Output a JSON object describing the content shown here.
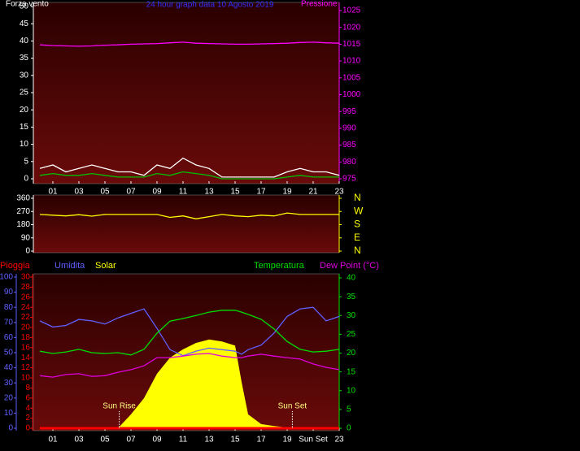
{
  "chart_data": [
    {
      "type": "line",
      "title": "24 hour graph data  10 Agosto 2019",
      "title_color": "#3030ff",
      "ylabel": "Forza vento",
      "y2label": "Pressione",
      "x": [
        0,
        1,
        2,
        3,
        4,
        5,
        6,
        7,
        8,
        9,
        10,
        11,
        12,
        13,
        14,
        15,
        16,
        17,
        18,
        19,
        20,
        21,
        22,
        23
      ],
      "xlim": [
        -0.5,
        23
      ],
      "xticks": [
        {
          "value": 1,
          "label": "01"
        },
        {
          "value": 3,
          "label": "03"
        },
        {
          "value": 5,
          "label": "05"
        },
        {
          "value": 7,
          "label": "07"
        },
        {
          "value": 9,
          "label": "09"
        },
        11,
        13,
        15,
        17,
        19,
        21,
        23
      ],
      "ylim": [
        0,
        50
      ],
      "yticks": [
        0,
        5,
        10,
        15,
        20,
        25,
        30,
        35,
        40,
        45,
        50
      ],
      "y_color": "#ffffff",
      "y2lim": [
        975,
        1025
      ],
      "y2ticks": [
        975,
        980,
        985,
        990,
        995,
        1000,
        1005,
        1010,
        1015,
        1020,
        1025
      ],
      "y2_color": "#ff00ff",
      "series": [
        {
          "color": "#ffffff",
          "values": [
            3,
            4,
            2,
            3,
            4,
            3,
            2,
            2,
            1,
            4,
            3,
            6,
            4,
            3,
            0.5,
            0.5,
            0.5,
            0.5,
            0.5,
            2,
            3,
            2,
            2,
            1
          ]
        },
        {
          "color": "#00c000",
          "values": [
            1,
            1.5,
            1,
            1,
            1.5,
            1,
            0.5,
            0.5,
            0.5,
            1.5,
            1,
            2,
            1.5,
            1,
            0,
            0,
            0,
            0,
            0,
            0.5,
            1,
            0.5,
            0.5,
            0.5
          ]
        },
        {
          "color": "#ff00ff",
          "axis": "y2",
          "values": [
            1014.8,
            1014.6,
            1014.5,
            1014.4,
            1014.5,
            1014.7,
            1014.8,
            1015,
            1015.1,
            1015.2,
            1015.4,
            1015.6,
            1015.3,
            1015.2,
            1015.1,
            1015,
            1015,
            1015.1,
            1015.2,
            1015.3,
            1015.5,
            1015.6,
            1015.4,
            1015.3
          ]
        }
      ]
    },
    {
      "type": "line",
      "x": [
        0,
        1,
        2,
        3,
        4,
        5,
        6,
        7,
        8,
        9,
        10,
        11,
        12,
        13,
        14,
        15,
        16,
        17,
        18,
        19,
        20,
        21,
        22,
        23
      ],
      "xlim": [
        -0.5,
        23
      ],
      "ylim": [
        0,
        360
      ],
      "yticks": [
        0,
        90,
        180,
        270,
        360
      ],
      "y_color": "#ffffff",
      "y2lim": [
        0,
        360
      ],
      "y2ticks": [
        {
          "value": 360,
          "label": "N"
        },
        {
          "value": 270,
          "label": "W"
        },
        {
          "value": 180,
          "label": "S"
        },
        {
          "value": 90,
          "label": "E"
        },
        {
          "value": 0,
          "label": "N"
        }
      ],
      "y2_color": "#ffff00",
      "series": [
        {
          "color": "#ffff00",
          "values": [
            250,
            245,
            240,
            248,
            238,
            250,
            250,
            250,
            250,
            250,
            230,
            240,
            220,
            235,
            250,
            240,
            235,
            245,
            240,
            260,
            250,
            250,
            250,
            250
          ]
        }
      ]
    },
    {
      "type": "line",
      "x": [
        0,
        1,
        2,
        3,
        4,
        5,
        6,
        7,
        8,
        9,
        10,
        11,
        12,
        13,
        14,
        15,
        15.5,
        16,
        17,
        18,
        19,
        20,
        21,
        22,
        23
      ],
      "xlim": [
        -0.5,
        23
      ],
      "xticks": [
        {
          "value": 1,
          "label": "01"
        },
        {
          "value": 3,
          "label": "03"
        },
        {
          "value": 5,
          "label": "05"
        },
        {
          "value": 7,
          "label": "07"
        },
        {
          "value": 9,
          "label": "09"
        },
        11,
        13,
        15,
        17,
        19,
        {
          "value": 21,
          "label": "Sun Set"
        },
        23
      ],
      "ylim": [
        0,
        100
      ],
      "yticks": [
        0,
        10,
        20,
        30,
        40,
        50,
        60,
        70,
        80,
        90,
        100
      ],
      "y_color": "#6060ff",
      "y3lim": [
        0,
        30
      ],
      "y3ticks": [
        0,
        2,
        4,
        6,
        8,
        10,
        12,
        14,
        16,
        18,
        20,
        22,
        24,
        26,
        28,
        30
      ],
      "y3_color": "#ff0000",
      "y2lim": [
        0,
        40
      ],
      "y2ticks": [
        0,
        5,
        10,
        15,
        20,
        25,
        30,
        35,
        40
      ],
      "y2_color": "#00e000",
      "series": [
        {
          "name": "Pioggia",
          "color": "#ff0000",
          "axis": "y3",
          "values": [
            0,
            0,
            0,
            0,
            0,
            0,
            0,
            0,
            0,
            0,
            0,
            0,
            0,
            0,
            0,
            0,
            0,
            0,
            0,
            0,
            0,
            0,
            0,
            0,
            0
          ]
        },
        {
          "name": "Umidita",
          "color": "#6060ff",
          "values": [
            71,
            67,
            68,
            72,
            71,
            69,
            73,
            76,
            79,
            66,
            52,
            48,
            51,
            53,
            52,
            51,
            49,
            52,
            55,
            63,
            74,
            79,
            80,
            71,
            74
          ]
        },
        {
          "name": "Solar",
          "color": "#ffff00",
          "axis": "y2",
          "kind": "area",
          "values": [
            0,
            0,
            0,
            0,
            0,
            0,
            0,
            3.7,
            8,
            14.5,
            18.8,
            21,
            22.7,
            23.6,
            23.1,
            22,
            12.3,
            3.7,
            1.1,
            0.6,
            0.2,
            0,
            0,
            0,
            0
          ]
        },
        {
          "name": "Temperatura",
          "color": "#00e000",
          "axis": "y2",
          "values": [
            20.5,
            19.9,
            20.3,
            21,
            20.1,
            19.9,
            20.1,
            19.5,
            21,
            25.3,
            28.5,
            29.2,
            30,
            30.9,
            31.4,
            31.4,
            30.9,
            30.3,
            29,
            26.4,
            23.1,
            21,
            20.3,
            20.5,
            21
          ]
        },
        {
          "name": "Dew Point (°C)",
          "color": "#e000e0",
          "axis": "y2",
          "values": [
            14,
            13.6,
            14.3,
            14.5,
            13.8,
            14,
            14.9,
            15.6,
            16.6,
            18.8,
            18.8,
            19.2,
            19.7,
            19.9,
            19.2,
            18.8,
            18.8,
            19.2,
            19.7,
            19.2,
            18.8,
            18.4,
            17.1,
            16.2,
            15.6
          ]
        }
      ],
      "annotations": [
        {
          "x": 6.1,
          "label": "Sun Rise"
        },
        {
          "x": 19.4,
          "label": "Sun Set"
        }
      ]
    }
  ]
}
